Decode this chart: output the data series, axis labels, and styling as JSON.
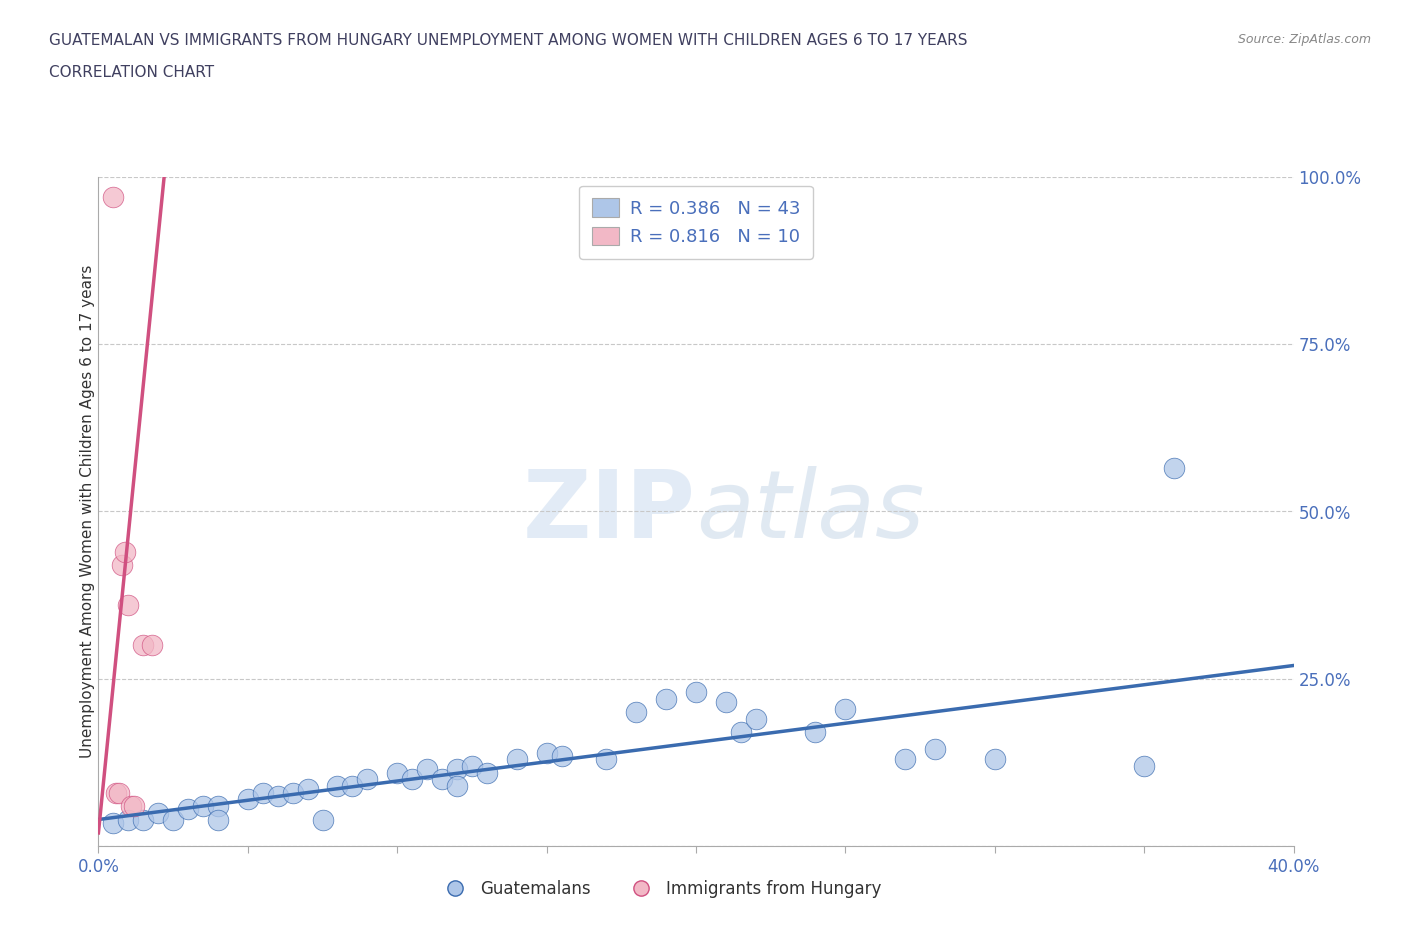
{
  "title_line1": "GUATEMALAN VS IMMIGRANTS FROM HUNGARY UNEMPLOYMENT AMONG WOMEN WITH CHILDREN AGES 6 TO 17 YEARS",
  "title_line2": "CORRELATION CHART",
  "source_text": "Source: ZipAtlas.com",
  "ylabel": "Unemployment Among Women with Children Ages 6 to 17 years",
  "watermark_zip": "ZIP",
  "watermark_atlas": "atlas",
  "xlim": [
    0.0,
    0.4
  ],
  "ylim": [
    0.0,
    1.0
  ],
  "xticks": [
    0.0,
    0.05,
    0.1,
    0.15,
    0.2,
    0.25,
    0.3,
    0.35,
    0.4
  ],
  "yticks": [
    0.0,
    0.25,
    0.5,
    0.75,
    1.0
  ],
  "blue_scatter_x": [
    0.005,
    0.01,
    0.015,
    0.02,
    0.025,
    0.03,
    0.035,
    0.04,
    0.04,
    0.05,
    0.055,
    0.06,
    0.065,
    0.07,
    0.075,
    0.08,
    0.085,
    0.09,
    0.1,
    0.105,
    0.11,
    0.115,
    0.12,
    0.12,
    0.125,
    0.13,
    0.14,
    0.15,
    0.155,
    0.17,
    0.18,
    0.19,
    0.2,
    0.21,
    0.215,
    0.22,
    0.24,
    0.25,
    0.27,
    0.28,
    0.3,
    0.35,
    0.36
  ],
  "blue_scatter_y": [
    0.035,
    0.04,
    0.04,
    0.05,
    0.04,
    0.055,
    0.06,
    0.06,
    0.04,
    0.07,
    0.08,
    0.075,
    0.08,
    0.085,
    0.04,
    0.09,
    0.09,
    0.1,
    0.11,
    0.1,
    0.115,
    0.1,
    0.115,
    0.09,
    0.12,
    0.11,
    0.13,
    0.14,
    0.135,
    0.13,
    0.2,
    0.22,
    0.23,
    0.215,
    0.17,
    0.19,
    0.17,
    0.205,
    0.13,
    0.145,
    0.13,
    0.12,
    0.565
  ],
  "pink_scatter_x": [
    0.005,
    0.006,
    0.007,
    0.008,
    0.009,
    0.01,
    0.011,
    0.012,
    0.015,
    0.018
  ],
  "pink_scatter_y": [
    0.97,
    0.08,
    0.08,
    0.42,
    0.44,
    0.36,
    0.06,
    0.06,
    0.3,
    0.3
  ],
  "blue_line_x": [
    0.0,
    0.4
  ],
  "blue_line_y": [
    0.04,
    0.27
  ],
  "pink_line_x": [
    0.0,
    0.022
  ],
  "pink_line_y": [
    0.02,
    1.0
  ],
  "blue_R": "0.386",
  "blue_N": "43",
  "pink_R": "0.816",
  "pink_N": "10",
  "blue_color": "#aec6e8",
  "blue_line_color": "#3a6baf",
  "pink_color": "#f2b8c6",
  "pink_line_color": "#d05080",
  "legend_label_blue": "Guatemalans",
  "legend_label_pink": "Immigrants from Hungary",
  "title_color": "#404060",
  "axis_color": "#4a6fbb",
  "grid_color": "#c8c8c8",
  "background_color": "#ffffff"
}
